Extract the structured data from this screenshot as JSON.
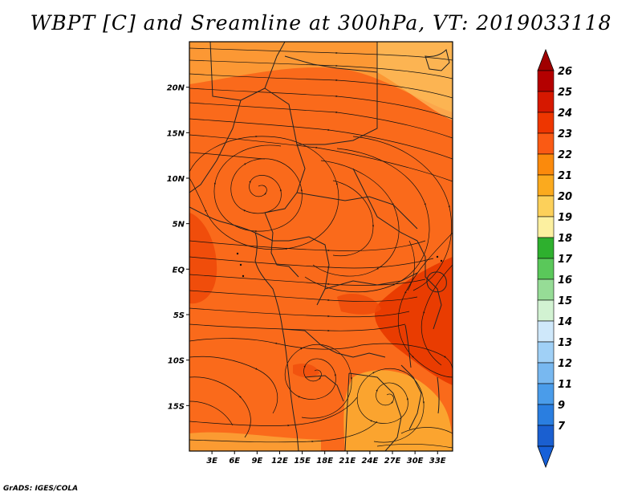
{
  "title": "WBPT [C] and Sreamline at 300hPa, VT: 2019033118",
  "credit": "GrADS: IGES/COLA",
  "map": {
    "lon_range": [
      0,
      35
    ],
    "lat_range": [
      -20,
      25
    ],
    "lon_ticks": [
      {
        "value": 3,
        "label": "3E"
      },
      {
        "value": 6,
        "label": "6E"
      },
      {
        "value": 9,
        "label": "9E"
      },
      {
        "value": 12,
        "label": "12E"
      },
      {
        "value": 15,
        "label": "15E"
      },
      {
        "value": 18,
        "label": "18E"
      },
      {
        "value": 21,
        "label": "21E"
      },
      {
        "value": 24,
        "label": "24E"
      },
      {
        "value": 27,
        "label": "27E"
      },
      {
        "value": 30,
        "label": "30E"
      },
      {
        "value": 33,
        "label": "33E"
      }
    ],
    "lat_ticks": [
      {
        "value": 20,
        "label": "20N"
      },
      {
        "value": 15,
        "label": "15N"
      },
      {
        "value": 10,
        "label": "10N"
      },
      {
        "value": 5,
        "label": "5N"
      },
      {
        "value": 0,
        "label": "EQ"
      },
      {
        "value": -5,
        "label": "5S"
      },
      {
        "value": -10,
        "label": "10S"
      },
      {
        "value": -15,
        "label": "15S"
      }
    ],
    "background_level_color": "#fa6a1b"
  },
  "colorbar": {
    "levels": [
      "26",
      "25",
      "24",
      "23",
      "22",
      "21",
      "20",
      "19",
      "18",
      "17",
      "16",
      "15",
      "14",
      "13",
      "12",
      "11",
      "9",
      "7"
    ],
    "colors": [
      "#b40000",
      "#d61800",
      "#ee3600",
      "#fa5a14",
      "#fb8a0c",
      "#fbaa1e",
      "#fcd05a",
      "#fcf0a0",
      "#2eb02e",
      "#5ac85a",
      "#96dc96",
      "#d2f2d2",
      "#cfe8fa",
      "#a0d0f6",
      "#78b8f0",
      "#4a9cea",
      "#2a7ee0",
      "#1a5fd0"
    ],
    "top_arrow_color": "#a00000",
    "bottom_arrow_color": "#1660d8"
  },
  "colors": {
    "base": "#fa6a1b",
    "warm_pale": "#fbaa2a",
    "hot": "#ee3600",
    "line": "#111111"
  }
}
